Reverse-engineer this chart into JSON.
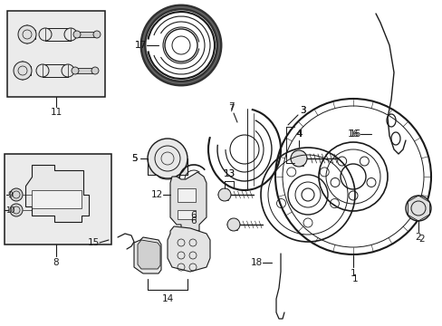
{
  "bg_color": "#ffffff",
  "line_color": "#1a1a1a",
  "box_bg": "#ebebeb",
  "fig_width": 4.89,
  "fig_height": 3.6
}
